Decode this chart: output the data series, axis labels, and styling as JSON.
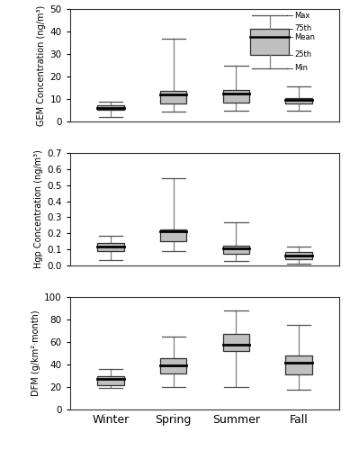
{
  "seasons": [
    "Winter",
    "Spring",
    "Summer",
    "Fall"
  ],
  "gem": {
    "ylabel": "GEM Concentration (ng/m³)",
    "ylim": [
      0,
      50
    ],
    "yticks": [
      0,
      10,
      20,
      30,
      40,
      50
    ],
    "boxes": [
      {
        "min": 2.0,
        "q25": 5.2,
        "mean": 6.2,
        "q75": 7.2,
        "max": 9.0
      },
      {
        "min": 4.5,
        "q25": 8.0,
        "mean": 12.0,
        "q75": 13.5,
        "max": 37.0
      },
      {
        "min": 5.0,
        "q25": 8.5,
        "mean": 12.5,
        "q75": 14.0,
        "max": 25.0
      },
      {
        "min": 5.0,
        "q25": 8.0,
        "mean": 9.5,
        "q75": 10.5,
        "max": 15.5
      }
    ]
  },
  "hgp": {
    "ylabel": "Hgp Concentration (ng/m³)",
    "ylim": [
      0.0,
      0.7
    ],
    "yticks": [
      0.0,
      0.1,
      0.2,
      0.3,
      0.4,
      0.5,
      0.6,
      0.7
    ],
    "boxes": [
      {
        "min": 0.035,
        "q25": 0.09,
        "mean": 0.115,
        "q75": 0.14,
        "max": 0.185
      },
      {
        "min": 0.09,
        "q25": 0.15,
        "mean": 0.215,
        "q75": 0.225,
        "max": 0.545
      },
      {
        "min": 0.03,
        "q25": 0.075,
        "mean": 0.105,
        "q75": 0.125,
        "max": 0.27
      },
      {
        "min": 0.01,
        "q25": 0.04,
        "mean": 0.06,
        "q75": 0.085,
        "max": 0.115
      }
    ]
  },
  "dfm": {
    "ylabel": "DFM (g/km²·month)",
    "ylim": [
      0,
      100
    ],
    "yticks": [
      0,
      20,
      40,
      60,
      80,
      100
    ],
    "boxes": [
      {
        "min": 19,
        "q25": 22,
        "mean": 27,
        "q75": 30,
        "max": 36
      },
      {
        "min": 20,
        "q25": 32,
        "mean": 39,
        "q75": 46,
        "max": 65
      },
      {
        "min": 20,
        "q25": 52,
        "mean": 58,
        "q75": 67,
        "max": 88
      },
      {
        "min": 18,
        "q25": 31,
        "mean": 42,
        "q75": 48,
        "max": 75
      }
    ]
  },
  "box_facecolor": "#c0c0c0",
  "box_edgecolor": "#303030",
  "whisker_color": "#808080",
  "mean_line_color": "#000000",
  "cap_color": "#505050"
}
